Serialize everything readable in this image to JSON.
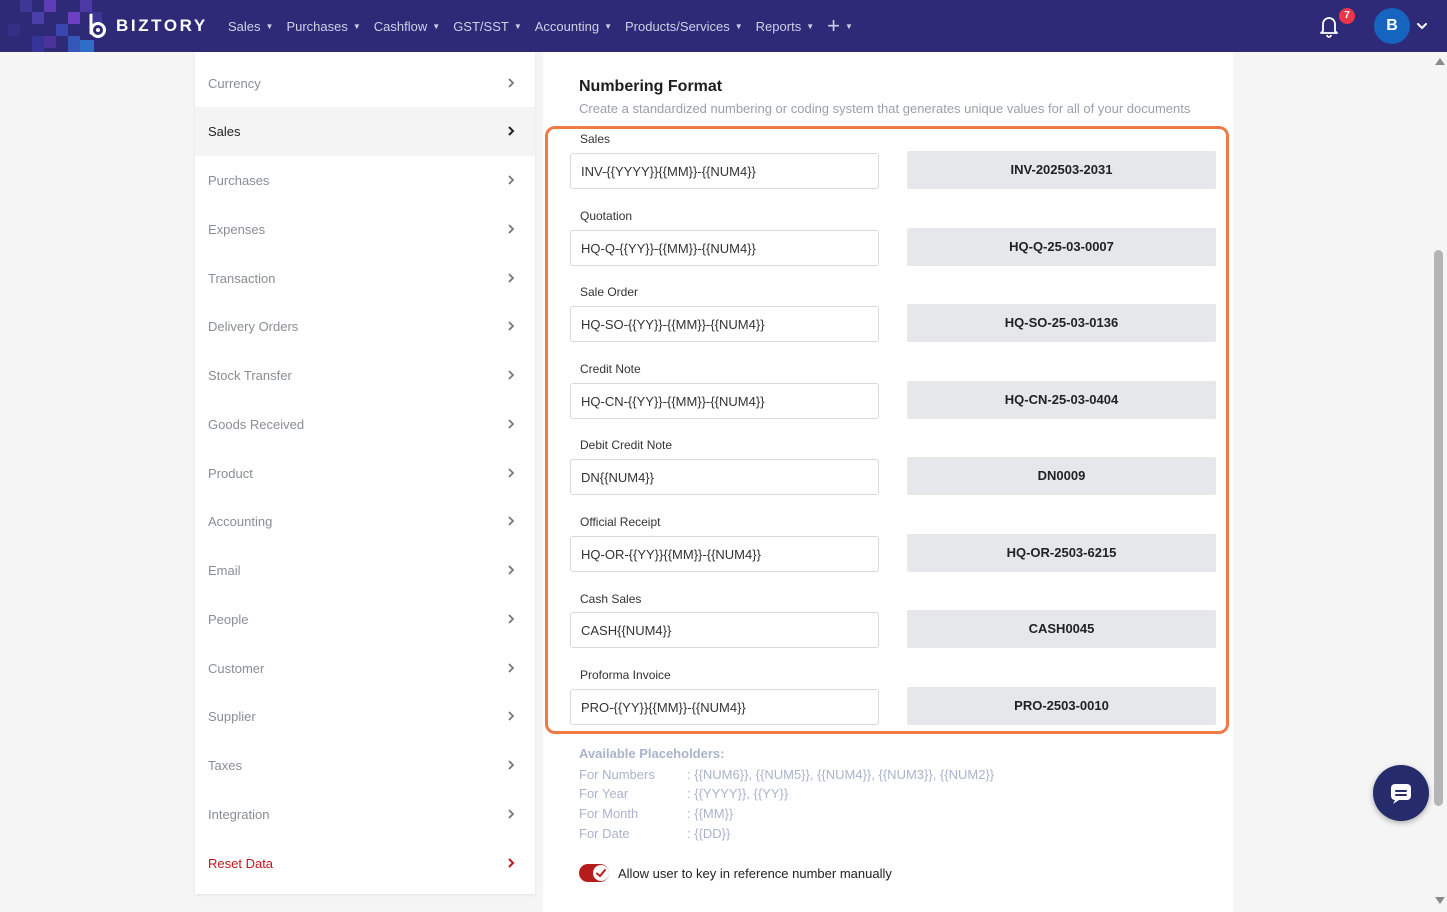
{
  "navbar": {
    "brand": "BIZTORY",
    "menu": [
      "Sales",
      "Purchases",
      "Cashflow",
      "GST/SST",
      "Accounting",
      "Products/Services",
      "Reports"
    ],
    "notification_count": "7",
    "avatar_initial": "B"
  },
  "sidebar": {
    "items": [
      {
        "label": "Currency"
      },
      {
        "label": "Sales"
      },
      {
        "label": "Purchases"
      },
      {
        "label": "Expenses"
      },
      {
        "label": "Transaction"
      },
      {
        "label": "Delivery Orders"
      },
      {
        "label": "Stock Transfer"
      },
      {
        "label": "Goods Received"
      },
      {
        "label": "Product"
      },
      {
        "label": "Accounting"
      },
      {
        "label": "Email"
      },
      {
        "label": "People"
      },
      {
        "label": "Customer"
      },
      {
        "label": "Supplier"
      },
      {
        "label": "Taxes"
      },
      {
        "label": "Integration"
      },
      {
        "label": "Reset Data"
      }
    ],
    "active": "Sales"
  },
  "numbering": {
    "title": "Numbering Format",
    "subtitle": "Create a standardized numbering or coding system that generates unique values for all of your documents",
    "fields": [
      {
        "label": "Sales",
        "format": "INV-{{YYYY}}{{MM}}-{{NUM4}}",
        "preview": "INV-202503-2031"
      },
      {
        "label": "Quotation",
        "format": "HQ-Q-{{YY}}-{{MM}}-{{NUM4}}",
        "preview": "HQ-Q-25-03-0007"
      },
      {
        "label": "Sale Order",
        "format": "HQ-SO-{{YY}}-{{MM}}-{{NUM4}}",
        "preview": "HQ-SO-25-03-0136"
      },
      {
        "label": "Credit Note",
        "format": "HQ-CN-{{YY}}-{{MM}}-{{NUM4}}",
        "preview": "HQ-CN-25-03-0404"
      },
      {
        "label": "Debit Credit Note",
        "format": "DN{{NUM4}}",
        "preview": "DN0009"
      },
      {
        "label": "Official Receipt",
        "format": "HQ-OR-{{YY}}{{MM}}-{{NUM4}}",
        "preview": "HQ-OR-2503-6215"
      },
      {
        "label": "Cash Sales",
        "format": "CASH{{NUM4}}",
        "preview": "CASH0045"
      },
      {
        "label": "Proforma Invoice",
        "format": "PRO-{{YY}}{{MM}}-{{NUM4}}",
        "preview": "PRO-2503-0010"
      }
    ]
  },
  "placeholders": {
    "title": "Available Placeholders:",
    "rows": [
      {
        "key": "For Numbers",
        "value": ": {{NUM6}}, {{NUM5}}, {{NUM4}}, {{NUM3}}, {{NUM2}}"
      },
      {
        "key": "For Year",
        "value": ": {{YYYY}}, {{YY}}"
      },
      {
        "key": "For Month",
        "value": ": {{MM}}"
      },
      {
        "key": "For Date",
        "value": ": {{DD}}"
      }
    ]
  },
  "manual_reference": {
    "label": "Allow user to key in reference number manually",
    "enabled": true
  },
  "colors": {
    "navbar": "#2e2a77",
    "highlight_border": "#f07a45",
    "toggle_on": "#b71c1c",
    "danger_text": "#c0171f",
    "badge": "#e8364a",
    "avatar": "#1565c0"
  }
}
